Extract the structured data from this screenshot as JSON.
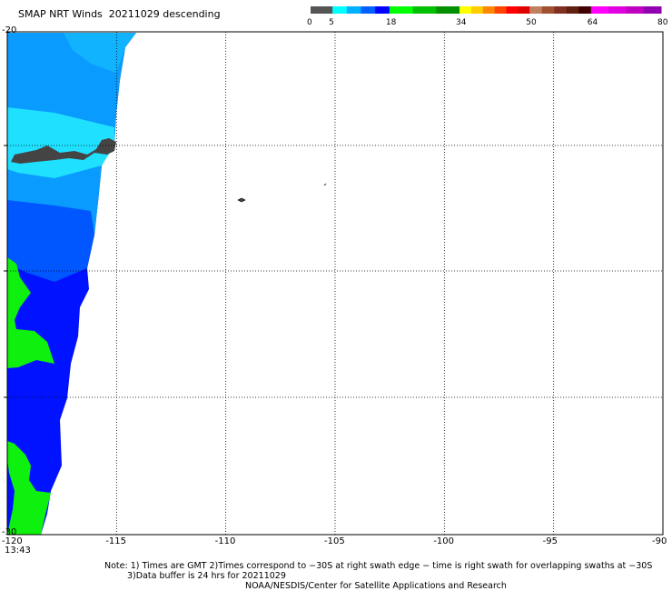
{
  "header": {
    "product": "SMAP NRT Winds",
    "date": "20211029",
    "pass": "descending"
  },
  "colorbar": {
    "tick_labels": [
      "0",
      "5",
      "18",
      "34",
      "50",
      "64",
      "80"
    ],
    "tick_values": [
      0,
      5,
      18,
      34,
      50,
      64,
      80
    ],
    "segments": [
      {
        "from": 0,
        "to": 5,
        "colors": [
          "#555555"
        ]
      },
      {
        "from": 5,
        "to": 18,
        "colors": [
          "#00ffff",
          "#00b0ff",
          "#0060ff",
          "#0000ff"
        ]
      },
      {
        "from": 18,
        "to": 34,
        "colors": [
          "#00ff00",
          "#00c000",
          "#009000"
        ]
      },
      {
        "from": 34,
        "to": 50,
        "colors": [
          "#ffff00",
          "#ffcc00",
          "#ff8800",
          "#ff4400",
          "#ff0000",
          "#e00000"
        ]
      },
      {
        "from": 50,
        "to": 64,
        "colors": [
          "#c08060",
          "#a05030",
          "#803020",
          "#602010",
          "#400000"
        ]
      },
      {
        "from": 64,
        "to": 80,
        "colors": [
          "#ff00ff",
          "#e000e0",
          "#c000c0",
          "#9000b0"
        ]
      }
    ]
  },
  "axes": {
    "x_ticks": [
      "-120",
      "-115",
      "-110",
      "-105",
      "-100",
      "-95",
      "-90"
    ],
    "x_values": [
      -120,
      -115,
      -110,
      -105,
      -100,
      -95,
      -90
    ],
    "y_ticks": [
      "-20",
      "-30"
    ],
    "y_values": [
      -20,
      -30
    ],
    "lon_range": [
      -120,
      -90
    ],
    "lat_range": [
      -30,
      -20
    ],
    "grid": true
  },
  "time_label": "13:43",
  "notes": {
    "line1": "Note: 1) Times are GMT 2)Times correspond to −30S at right swath edge − time is right swath for overlapping swaths at −30S",
    "line2": "3)Data buffer is 24 hrs for 20211029",
    "credit": "NOAA/NESDIS/Center for Satellite Applications and Research"
  },
  "palette": {
    "light_cyan": "#1fe0ff",
    "sky_blue": "#0a9bff",
    "mid_blue": "#0057ff",
    "deep_blue": "#0012ff",
    "green": "#0ef00e",
    "land_gray": "#444444"
  }
}
